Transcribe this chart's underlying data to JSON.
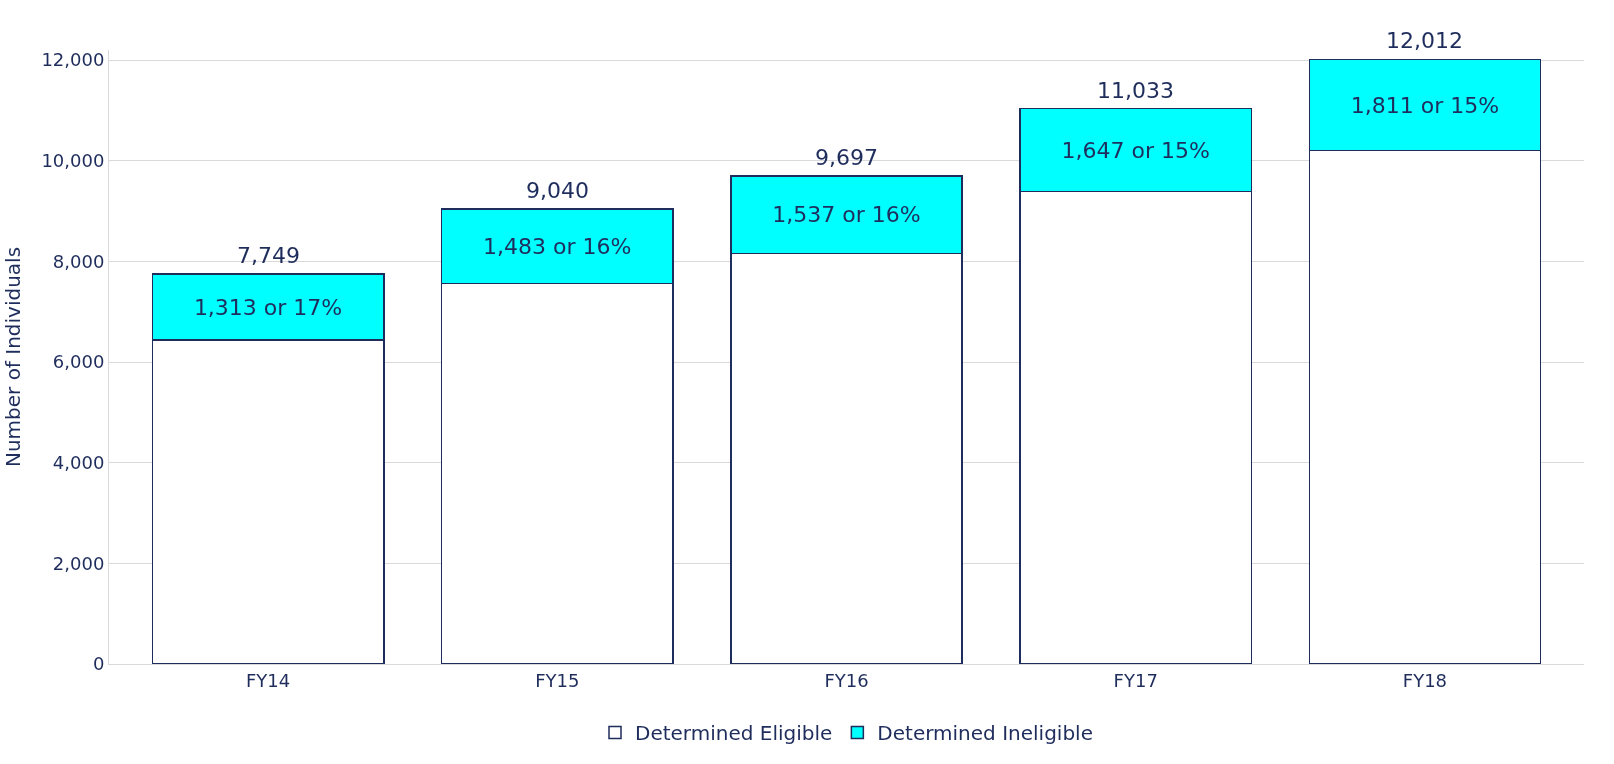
{
  "chart_data": {
    "type": "bar",
    "stacked": true,
    "ylabel": "Number of Individuals",
    "categories": [
      "FY14",
      "FY15",
      "FY16",
      "FY17",
      "FY18"
    ],
    "series": [
      {
        "name": "Determined Eligible",
        "color": "#ffffff",
        "values": [
          6436,
          7557,
          8160,
          9386,
          10201
        ]
      },
      {
        "name": "Determined Ineligible",
        "color": "#00ffff",
        "values": [
          1313,
          1483,
          1537,
          1647,
          1811
        ],
        "value_labels": [
          "1,313 or 17%",
          "1,483 or 16%",
          "1,537 or 16%",
          "1,647 or 15%",
          "1,811 or 15%"
        ]
      }
    ],
    "totals": [
      "7,749",
      "9,040",
      "9,697",
      "11,033",
      "12,012"
    ],
    "ylim": [
      0,
      12200
    ],
    "yticks": [
      {
        "value": 0,
        "label": "0"
      },
      {
        "value": 2000,
        "label": "2,000"
      },
      {
        "value": 4000,
        "label": "4,000"
      },
      {
        "value": 6000,
        "label": "6,000"
      },
      {
        "value": 8000,
        "label": "8,000"
      },
      {
        "value": 10000,
        "label": "10,000"
      },
      {
        "value": 12000,
        "label": "12,000"
      }
    ],
    "grid": "y",
    "legend": "bottom"
  }
}
